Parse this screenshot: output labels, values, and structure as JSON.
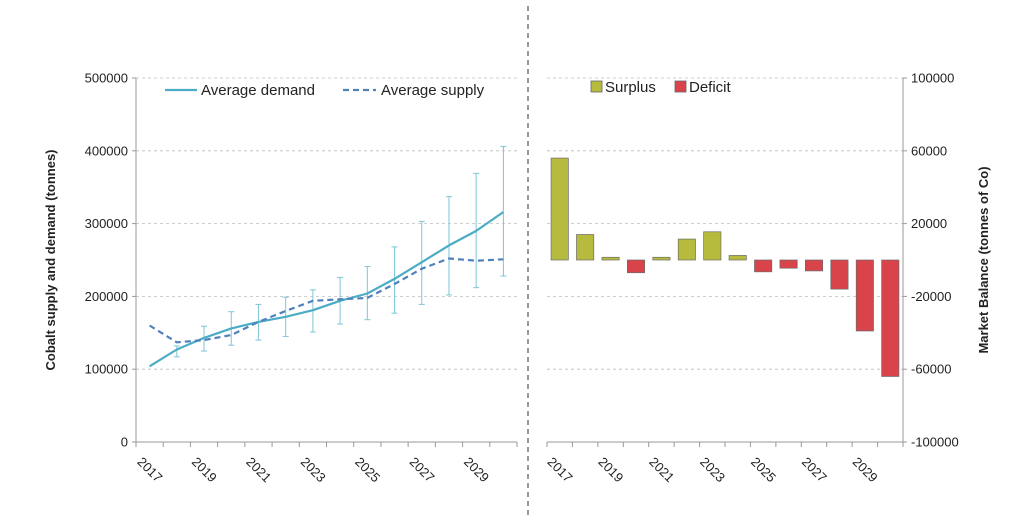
{
  "chart_data": [
    {
      "type": "line",
      "xlabel": "",
      "ylabel": "Cobalt supply and demand (tonnes)",
      "ylim": [
        0,
        500000
      ],
      "ytick_labels": [
        "0",
        "100000",
        "200000",
        "300000",
        "400000",
        "500000"
      ],
      "x": [
        2017,
        2018,
        2019,
        2020,
        2021,
        2022,
        2023,
        2024,
        2025,
        2026,
        2027,
        2028,
        2029,
        2030
      ],
      "xtick_labels": [
        "2017",
        "2019",
        "2021",
        "2023",
        "2025",
        "2027",
        "2029"
      ],
      "legend_position": "top",
      "grid": "horizontal dashed",
      "series": [
        {
          "name": "Average demand",
          "style": "solid",
          "color": "#4bacc6",
          "values": [
            104000,
            127000,
            143000,
            156000,
            165000,
            172000,
            181000,
            194000,
            204000,
            224000,
            247000,
            270000,
            290000,
            316000
          ],
          "error_low": [
            104000,
            117000,
            125000,
            133000,
            140000,
            145000,
            151000,
            162000,
            168000,
            177000,
            189000,
            202000,
            212000,
            228000
          ],
          "error_high": [
            104000,
            132000,
            159000,
            179000,
            189000,
            199000,
            209000,
            226000,
            241000,
            268000,
            303000,
            337000,
            369000,
            406000
          ]
        },
        {
          "name": "Average supply",
          "style": "dashed",
          "color": "#4f81bd",
          "values": [
            160000,
            137000,
            140000,
            147000,
            165000,
            180000,
            194000,
            196000,
            198000,
            217000,
            238000,
            252000,
            249000,
            251000
          ]
        }
      ]
    },
    {
      "type": "bar",
      "xlabel": "",
      "ylabel": "Market Balance (tonnes of Co)",
      "ylim": [
        -100000,
        100000
      ],
      "ytick_labels": [
        "-100000",
        "-60000",
        "-20000",
        "20000",
        "60000",
        "100000"
      ],
      "categories": [
        "2017",
        "2018",
        "2019",
        "2020",
        "2021",
        "2022",
        "2023",
        "2024",
        "2025",
        "2026",
        "2027",
        "2028",
        "2029",
        "2030"
      ],
      "xtick_labels": [
        "2017",
        "2019",
        "2021",
        "2023",
        "2025",
        "2027",
        "2029"
      ],
      "values": [
        56000,
        14000,
        1500,
        -7000,
        1500,
        11500,
        15500,
        2500,
        -6500,
        -4500,
        -6000,
        -16000,
        -39000,
        -64000
      ],
      "legend_position": "top",
      "grid": "horizontal dashed",
      "series": [
        {
          "name": "Surplus",
          "color": "#b7bb3d"
        },
        {
          "name": "Deficit",
          "color": "#d9444b"
        }
      ]
    }
  ]
}
